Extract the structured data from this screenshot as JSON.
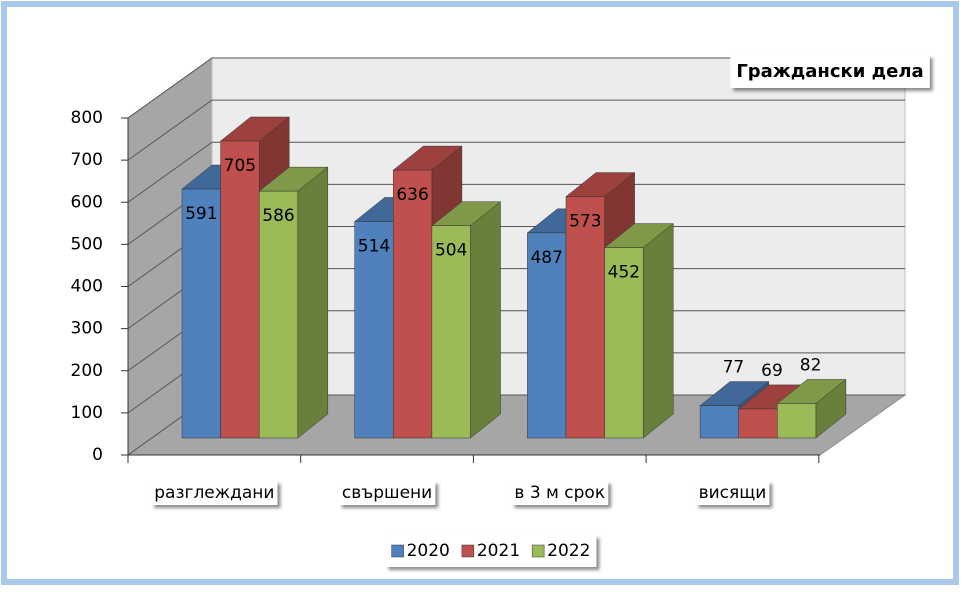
{
  "chart_data": {
    "type": "bar3d",
    "title": "Граждански дела",
    "categories": [
      "разглеждани",
      "свършени",
      "в 3 м срок",
      "висящи"
    ],
    "series": [
      {
        "name": "2020",
        "color": "#4f81bd",
        "values": [
          591,
          514,
          487,
          77
        ]
      },
      {
        "name": "2021",
        "color": "#c0504d",
        "values": [
          705,
          636,
          573,
          69
        ]
      },
      {
        "name": "2022",
        "color": "#9bbb59",
        "values": [
          586,
          504,
          452,
          82
        ]
      }
    ],
    "ylim": [
      0,
      800
    ],
    "yticks": [
      0,
      100,
      200,
      300,
      400,
      500,
      600,
      700,
      800
    ],
    "grid": true,
    "legend": "bottom"
  }
}
